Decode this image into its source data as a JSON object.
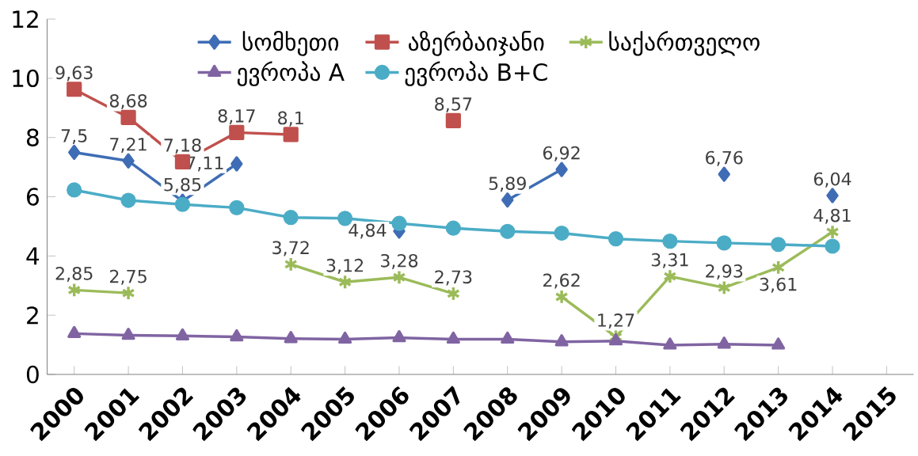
{
  "chart_data": {
    "type": "line",
    "categories": [
      "2000",
      "2001",
      "2002",
      "2003",
      "2004",
      "2005",
      "2006",
      "2007",
      "2008",
      "2009",
      "2010",
      "2011",
      "2012",
      "2013",
      "2014",
      "2015"
    ],
    "series": [
      {
        "name": "სომხეთი",
        "color": "#3f6db5",
        "marker": "diamond",
        "values": [
          7.5,
          7.21,
          5.85,
          7.11,
          null,
          null,
          4.84,
          null,
          5.89,
          6.92,
          null,
          null,
          6.76,
          null,
          6.04,
          null
        ],
        "value_labels": [
          "7,5",
          "7,21",
          "5,85",
          "7,11",
          null,
          null,
          "4,84",
          null,
          "5,89",
          "6,92",
          null,
          null,
          "6,76",
          null,
          "6,04",
          null
        ]
      },
      {
        "name": "აზერბაიჯანი",
        "color": "#c0504d",
        "marker": "square",
        "values": [
          9.63,
          8.68,
          7.18,
          8.17,
          8.1,
          null,
          null,
          8.57,
          null,
          null,
          null,
          null,
          null,
          null,
          null,
          null
        ],
        "value_labels": [
          "9,63",
          "8,68",
          "7,18",
          "8,17",
          "8,1",
          null,
          null,
          "8,57",
          null,
          null,
          null,
          null,
          null,
          null,
          null,
          null
        ]
      },
      {
        "name": "საქართველო",
        "color": "#9bbb59",
        "marker": "cross",
        "values": [
          2.85,
          2.75,
          null,
          null,
          3.72,
          3.12,
          3.28,
          2.73,
          null,
          2.62,
          1.27,
          3.31,
          2.93,
          3.61,
          4.81,
          null
        ],
        "value_labels": [
          "2,85",
          "2,75",
          null,
          null,
          "3,72",
          "3,12",
          "3,28",
          "2,73",
          null,
          "2,62",
          "1,27",
          "3,31",
          "2,93",
          "3,61",
          "4,81",
          null
        ]
      },
      {
        "name": "ევროპა  A",
        "color": "#8064a2",
        "marker": "triangle",
        "values": [
          1.38,
          1.32,
          1.3,
          1.27,
          1.21,
          1.19,
          1.24,
          1.19,
          1.19,
          1.1,
          1.13,
          0.99,
          1.02,
          0.99,
          null,
          null
        ]
      },
      {
        "name": "ევროპა  B+C",
        "color": "#4bacc6",
        "marker": "circle",
        "values": [
          6.23,
          5.88,
          5.74,
          5.63,
          5.3,
          5.27,
          5.1,
          4.94,
          4.83,
          4.77,
          4.58,
          4.5,
          4.44,
          4.39,
          4.33,
          null
        ]
      }
    ],
    "ylim": [
      0,
      12
    ],
    "yticks": [
      0,
      2,
      4,
      6,
      8,
      10,
      12
    ],
    "grid": false,
    "legend": "top",
    "line_style": "solid"
  }
}
